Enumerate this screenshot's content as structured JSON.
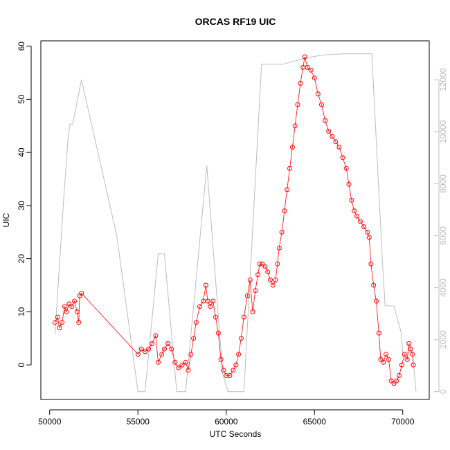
{
  "chart_data": {
    "type": "scatter",
    "title": "ORCAS RF19 UIC",
    "xlabel": "UTC Seconds",
    "ylabel": "UIC",
    "xlim": [
      49500,
      71500
    ],
    "ylim": [
      -6.5,
      61
    ],
    "x_ticks": [
      50000,
      55000,
      60000,
      65000,
      70000
    ],
    "y_ticks": [
      0,
      10,
      20,
      30,
      40,
      50,
      60
    ],
    "y2_label": "",
    "y2lim": [
      -300,
      13500
    ],
    "y2_ticks": [
      0,
      2000,
      4000,
      6000,
      8000,
      10000,
      12000
    ],
    "grid": false,
    "colors": {
      "points": "#ff0000",
      "altitude": "#bdbdbd",
      "axes": "#000000"
    },
    "series": [
      {
        "type": "scatter",
        "marker": "open-circle",
        "axis": "left",
        "values": [
          [
            50300,
            8
          ],
          [
            50450,
            9
          ],
          [
            50550,
            7
          ],
          [
            50700,
            8
          ],
          [
            50850,
            11
          ],
          [
            50950,
            10
          ],
          [
            51100,
            11.5
          ],
          [
            51250,
            11
          ],
          [
            51400,
            12
          ],
          [
            51550,
            10
          ],
          [
            51650,
            8
          ],
          [
            51700,
            13
          ],
          [
            51800,
            13.5
          ],
          [
            55000,
            2
          ],
          [
            55200,
            3
          ],
          [
            55400,
            2.5
          ],
          [
            55600,
            3
          ],
          [
            55800,
            4
          ],
          [
            56000,
            5.5
          ],
          [
            56150,
            0.5
          ],
          [
            56350,
            2
          ],
          [
            56500,
            3
          ],
          [
            56700,
            4
          ],
          [
            56900,
            3
          ],
          [
            57100,
            0.5
          ],
          [
            57300,
            -0.5
          ],
          [
            57500,
            0
          ],
          [
            57700,
            0.5
          ],
          [
            57850,
            -1
          ],
          [
            58000,
            2
          ],
          [
            58150,
            5
          ],
          [
            58300,
            8
          ],
          [
            58500,
            11
          ],
          [
            58700,
            12
          ],
          [
            58850,
            15
          ],
          [
            58950,
            12
          ],
          [
            59100,
            11
          ],
          [
            59250,
            12
          ],
          [
            59400,
            9
          ],
          [
            59550,
            6
          ],
          [
            59700,
            1
          ],
          [
            59850,
            -1
          ],
          [
            60000,
            -2
          ],
          [
            60200,
            -2
          ],
          [
            60400,
            -1
          ],
          [
            60550,
            0
          ],
          [
            60700,
            2
          ],
          [
            60850,
            5
          ],
          [
            61000,
            9
          ],
          [
            61200,
            13
          ],
          [
            61350,
            16
          ],
          [
            61500,
            10
          ],
          [
            61650,
            14
          ],
          [
            61800,
            17
          ],
          [
            61900,
            19
          ],
          [
            62050,
            19
          ],
          [
            62200,
            18.5
          ],
          [
            62350,
            17.5
          ],
          [
            62500,
            16
          ],
          [
            62650,
            15
          ],
          [
            62800,
            16
          ],
          [
            62900,
            19
          ],
          [
            63000,
            22
          ],
          [
            63150,
            25
          ],
          [
            63300,
            29
          ],
          [
            63450,
            33
          ],
          [
            63600,
            37
          ],
          [
            63750,
            41
          ],
          [
            63900,
            45
          ],
          [
            64050,
            49
          ],
          [
            64200,
            53
          ],
          [
            64350,
            56
          ],
          [
            64450,
            58
          ],
          [
            64600,
            56
          ],
          [
            64800,
            55.5
          ],
          [
            65000,
            54
          ],
          [
            65200,
            51
          ],
          [
            65400,
            49
          ],
          [
            65600,
            46
          ],
          [
            65800,
            44
          ],
          [
            66000,
            43
          ],
          [
            66200,
            42
          ],
          [
            66400,
            41
          ],
          [
            66600,
            39
          ],
          [
            66800,
            37
          ],
          [
            66950,
            34
          ],
          [
            67100,
            31
          ],
          [
            67250,
            29
          ],
          [
            67400,
            28
          ],
          [
            67600,
            27
          ],
          [
            67800,
            26
          ],
          [
            68000,
            25
          ],
          [
            68100,
            24
          ],
          [
            68200,
            19
          ],
          [
            68350,
            15
          ],
          [
            68500,
            12
          ],
          [
            68650,
            6
          ],
          [
            68750,
            1
          ],
          [
            68900,
            0.5
          ],
          [
            69050,
            2
          ],
          [
            69200,
            1
          ],
          [
            69350,
            -3
          ],
          [
            69500,
            -3.5
          ],
          [
            69650,
            -3
          ],
          [
            69800,
            -2
          ],
          [
            69950,
            0
          ],
          [
            70100,
            2
          ],
          [
            70250,
            1
          ],
          [
            70350,
            4
          ],
          [
            70450,
            3
          ],
          [
            70550,
            2
          ],
          [
            70600,
            0
          ]
        ]
      },
      {
        "type": "line",
        "axis": "right",
        "values": [
          [
            50300,
            2200
          ],
          [
            50800,
            7500
          ],
          [
            51050,
            9800
          ],
          [
            51150,
            10300
          ],
          [
            51300,
            10300
          ],
          [
            51800,
            12000
          ],
          [
            53800,
            6000
          ],
          [
            55000,
            0
          ],
          [
            55400,
            0
          ],
          [
            56150,
            5300
          ],
          [
            56500,
            5300
          ],
          [
            57200,
            0
          ],
          [
            57700,
            0
          ],
          [
            58900,
            8700
          ],
          [
            59800,
            700
          ],
          [
            60100,
            0
          ],
          [
            61000,
            0
          ],
          [
            62000,
            12600
          ],
          [
            63200,
            12600
          ],
          [
            64600,
            12850
          ],
          [
            65400,
            12950
          ],
          [
            66600,
            13000
          ],
          [
            68250,
            13000
          ],
          [
            68850,
            5000
          ],
          [
            69000,
            3300
          ],
          [
            69500,
            3300
          ],
          [
            69900,
            2300
          ],
          [
            70000,
            1500
          ],
          [
            70550,
            1500
          ],
          [
            70750,
            0
          ]
        ]
      }
    ]
  }
}
